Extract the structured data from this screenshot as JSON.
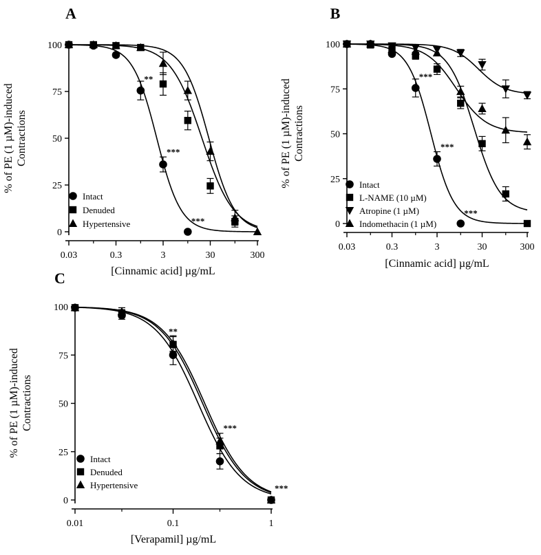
{
  "chart_data": [
    {
      "type": "scatter",
      "panel_label": "A",
      "xlabel": "[Cinnamic acid] µg/mL",
      "ylabel_line1": "% of PE (1 µM)-induced",
      "ylabel_line2": "Contractions",
      "xscale": "log",
      "xlim": [
        0.03,
        300
      ],
      "ylim": [
        0,
        100
      ],
      "xticks": [
        0.03,
        0.3,
        3,
        30,
        300
      ],
      "xtick_labels": [
        "0.03",
        "0.3",
        "3",
        "30",
        "300"
      ],
      "yticks": [
        0,
        25,
        50,
        75,
        100
      ],
      "ytick_labels": [
        "0",
        "25",
        "50",
        "75",
        "100"
      ],
      "legend_position": "bottom-left",
      "series": [
        {
          "name": "Intact",
          "marker": "circle",
          "x": [
            0.03,
            0.1,
            0.3,
            1,
            3,
            10
          ],
          "y": [
            100,
            99.5,
            94.5,
            75.5,
            36,
            0
          ],
          "err": [
            0,
            0,
            1,
            5,
            4,
            0
          ],
          "fit": {
            "ec50": 2.2,
            "hill": 1.7,
            "bottom": 0
          }
        },
        {
          "name": "Denuded",
          "marker": "square",
          "x": [
            0.03,
            0.1,
            0.3,
            1,
            3,
            10,
            30,
            100
          ],
          "y": [
            100,
            100,
            99.5,
            98.5,
            79,
            59.5,
            24.5,
            5.5
          ],
          "err": [
            0,
            0,
            0,
            0,
            6,
            5,
            4,
            3
          ],
          "fit": {
            "ec50": 20,
            "hill": 1.3,
            "bottom": 0
          }
        },
        {
          "name": "Hypertensive",
          "marker": "triangle-up",
          "x": [
            0.03,
            0.1,
            0.3,
            1,
            3,
            10,
            30,
            100,
            300
          ],
          "y": [
            100,
            100,
            99.5,
            98.5,
            90,
            75.5,
            43,
            7.5,
            0
          ],
          "err": [
            0,
            0,
            0,
            0,
            6,
            5,
            5,
            4,
            0
          ],
          "fit": {
            "ec50": 28,
            "hill": 1.6,
            "bottom": 0
          }
        }
      ],
      "annotations": [
        {
          "text": "**",
          "x": 1,
          "y": 80
        },
        {
          "text": "***",
          "x": 3,
          "y": 41
        },
        {
          "text": "***",
          "x": 10,
          "y": 4
        }
      ]
    },
    {
      "type": "scatter",
      "panel_label": "B",
      "xlabel": "[Cinnamic acid] µg/mL",
      "ylabel_line1": "% of PE (1 µM)-induced",
      "ylabel_line2": "Contractions",
      "xscale": "log",
      "xlim": [
        0.03,
        300
      ],
      "ylim": [
        0,
        100
      ],
      "xticks": [
        0.03,
        0.3,
        3,
        30,
        300
      ],
      "xtick_labels": [
        "0.03",
        "0.3",
        "3",
        "30",
        "300"
      ],
      "yticks": [
        0,
        25,
        50,
        75,
        100
      ],
      "ytick_labels": [
        "0",
        "25",
        "50",
        "75",
        "100"
      ],
      "legend_position": "bottom-left",
      "series": [
        {
          "name": "Intact",
          "marker": "circle",
          "x": [
            0.03,
            0.1,
            0.3,
            1,
            3,
            10
          ],
          "y": [
            100,
            100,
            94.5,
            75.5,
            36,
            0
          ],
          "err": [
            0,
            0,
            1,
            5,
            4,
            0
          ],
          "fit": {
            "ec50": 2.2,
            "hill": 1.7,
            "bottom": 0
          }
        },
        {
          "name": "L-NAME (10 µM)",
          "marker": "square",
          "x": [
            0.03,
            0.1,
            0.3,
            1,
            3,
            10,
            30,
            100,
            300
          ],
          "y": [
            100,
            99.5,
            97,
            93.5,
            86,
            67,
            44.5,
            16.5,
            0
          ],
          "err": [
            0,
            0,
            0,
            2,
            3,
            3,
            4,
            4,
            0
          ],
          "fit": {
            "ec50": 20,
            "hill": 1.5,
            "bottom": 6
          }
        },
        {
          "name": "Atropine (1 µM)",
          "marker": "triangle-down",
          "x": [
            0.03,
            0.1,
            0.3,
            1,
            3,
            10,
            30,
            100,
            300
          ],
          "y": [
            100,
            100,
            99,
            98,
            97,
            95,
            88.5,
            75,
            71.5
          ],
          "err": [
            0,
            0,
            0,
            0,
            0,
            2,
            3,
            5,
            2
          ],
          "fit": {
            "ec50": 25,
            "hill": 1.5,
            "bottom": 72
          }
        },
        {
          "name": "Indomethacin (1 µM)",
          "marker": "triangle-up",
          "x": [
            0.03,
            0.1,
            0.3,
            1,
            3,
            10,
            30,
            100,
            300
          ],
          "y": [
            100,
            100,
            97,
            96,
            95,
            73.5,
            64,
            52,
            45.5
          ],
          "err": [
            0,
            0,
            0,
            0,
            0,
            3,
            3,
            7,
            4
          ],
          "fit": {
            "ec50": 8,
            "hill": 1.3,
            "bottom": 50.5
          }
        }
      ],
      "annotations": [
        {
          "text": "***",
          "x": 1,
          "y": 80
        },
        {
          "text": "***",
          "x": 3,
          "y": 41
        },
        {
          "text": "***",
          "x": 10,
          "y": 4
        }
      ]
    },
    {
      "type": "scatter",
      "panel_label": "C",
      "xlabel": "[Verapamil] µg/mL",
      "ylabel_line1": "% of PE (1 µM)-induced",
      "ylabel_line2": "Contractions",
      "xscale": "log",
      "xlim": [
        0.01,
        1
      ],
      "ylim": [
        0,
        100
      ],
      "xticks": [
        0.01,
        0.1,
        1
      ],
      "xtick_labels": [
        "0.01",
        "0.1",
        "1"
      ],
      "yticks": [
        0,
        25,
        50,
        75,
        100
      ],
      "ytick_labels": [
        "0",
        "25",
        "50",
        "75",
        "100"
      ],
      "legend_position": "bottom-left",
      "series": [
        {
          "name": "Intact",
          "marker": "circle",
          "x": [
            0.01,
            0.03,
            0.1,
            0.3,
            1
          ],
          "y": [
            99.5,
            95.5,
            75,
            20,
            0
          ],
          "err": [
            0,
            2,
            5,
            4,
            0
          ],
          "fit": {
            "ec50": 0.18,
            "hill": 2.0,
            "bottom": 0
          }
        },
        {
          "name": "Denuded",
          "marker": "square",
          "x": [
            0.01,
            0.03,
            0.1,
            0.3,
            1
          ],
          "y": [
            99.5,
            96.5,
            80.5,
            28,
            0
          ],
          "err": [
            0,
            2,
            4,
            4,
            0
          ],
          "fit": {
            "ec50": 0.2,
            "hill": 2.0,
            "bottom": 0
          }
        },
        {
          "name": "Hypertensive",
          "marker": "triangle-up",
          "x": [
            0.01,
            0.03,
            0.1,
            0.3,
            1
          ],
          "y": [
            99.5,
            97.5,
            81,
            30.5,
            0
          ],
          "err": [
            0,
            2,
            4,
            4,
            0
          ],
          "fit": {
            "ec50": 0.21,
            "hill": 2.0,
            "bottom": 0
          }
        }
      ],
      "annotations": [
        {
          "text": "**",
          "x": 0.1,
          "y": 85.5
        },
        {
          "text": "***",
          "x": 0.3,
          "y": 35.5
        },
        {
          "text": "***",
          "x": 1,
          "y": 4.5
        }
      ]
    }
  ]
}
